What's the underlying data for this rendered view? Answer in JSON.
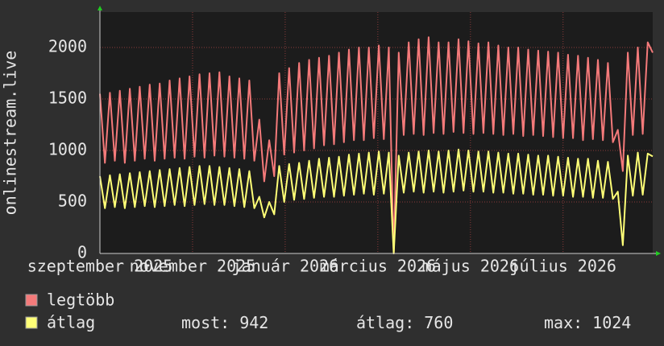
{
  "chart_data": {
    "type": "line",
    "y_label": "onlinestream.live",
    "xlim": [
      0,
      111
    ],
    "xticks": [
      {
        "value": 0,
        "label": "szeptember 2025"
      },
      {
        "value": 18.6,
        "label": "november 2025"
      },
      {
        "value": 37.2,
        "label": "január 2026"
      },
      {
        "value": 55.8,
        "label": "március 2026"
      },
      {
        "value": 74.4,
        "label": "május 2026"
      },
      {
        "value": 93,
        "label": "július 2026"
      }
    ],
    "ylim": [
      0,
      2344
    ],
    "yticks": [
      0,
      500,
      1000,
      1500,
      2000
    ],
    "grid": true,
    "series": [
      {
        "name": "legtöbb",
        "color": "#f47a7a",
        "values": [
          1550,
          880,
          1560,
          900,
          1580,
          880,
          1600,
          900,
          1620,
          920,
          1640,
          900,
          1650,
          920,
          1680,
          930,
          1700,
          920,
          1720,
          940,
          1740,
          930,
          1750,
          950,
          1760,
          940,
          1720,
          930,
          1700,
          920,
          1680,
          900,
          1300,
          700,
          1100,
          750,
          1750,
          960,
          1800,
          980,
          1850,
          1000,
          1880,
          1020,
          1900,
          1050,
          1920,
          1060,
          1950,
          1080,
          1980,
          1100,
          2000,
          1100,
          2000,
          1120,
          2020,
          1110,
          2000,
          0,
          1950,
          1150,
          2050,
          1160,
          2080,
          1150,
          2100,
          1170,
          2050,
          1160,
          2050,
          1180,
          2080,
          1170,
          2060,
          1160,
          2040,
          1170,
          2050,
          1160,
          2020,
          1150,
          2000,
          1160,
          2000,
          1140,
          1980,
          1150,
          1970,
          1140,
          1960,
          1130,
          1950,
          1120,
          1930,
          1120,
          1920,
          1100,
          1900,
          1110,
          1880,
          1100,
          1850,
          1080,
          1200,
          800,
          1950,
          1150,
          2000,
          1160,
          2050,
          1950
        ]
      },
      {
        "name": "átlag",
        "color": "#ffff77",
        "values": [
          750,
          440,
          760,
          450,
          770,
          440,
          780,
          450,
          790,
          460,
          800,
          450,
          810,
          460,
          820,
          470,
          830,
          460,
          840,
          470,
          850,
          480,
          850,
          470,
          840,
          470,
          830,
          460,
          820,
          450,
          800,
          440,
          550,
          350,
          500,
          380,
          850,
          500,
          870,
          520,
          880,
          530,
          900,
          540,
          920,
          550,
          930,
          550,
          940,
          560,
          960,
          570,
          970,
          580,
          980,
          570,
          990,
          580,
          980,
          0,
          950,
          590,
          980,
          600,
          990,
          590,
          1000,
          600,
          990,
          590,
          1000,
          600,
          1010,
          610,
          1000,
          600,
          990,
          600,
          990,
          590,
          980,
          590,
          970,
          580,
          970,
          580,
          960,
          570,
          950,
          570,
          950,
          560,
          940,
          560,
          930,
          550,
          920,
          550,
          920,
          540,
          900,
          540,
          890,
          530,
          600,
          80,
          950,
          560,
          980,
          570,
          970,
          942
        ]
      }
    ],
    "stats": [
      {
        "label": "most:",
        "value": 942
      },
      {
        "label": "átlag:",
        "value": 760
      },
      {
        "label": "max:",
        "value": 1024
      }
    ]
  }
}
